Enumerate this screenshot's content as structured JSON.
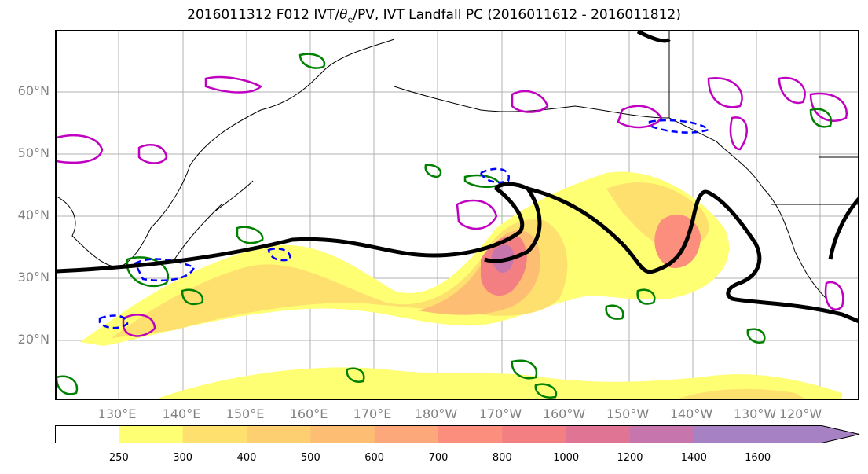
{
  "title": {
    "prefix": "2016011312 F012 IVT/",
    "theta": "θ",
    "sub": "e",
    "suffix": "/PV, IVT Landfall PC (2016011612 - 2016011812)"
  },
  "lat_labels": [
    "60°N",
    "50°N",
    "40°N",
    "30°N",
    "20°N"
  ],
  "lon_labels": [
    "130°E",
    "140°E",
    "150°E",
    "160°E",
    "170°E",
    "180°W",
    "170°W",
    "160°W",
    "150°W",
    "140°W",
    "130°W",
    "120°W"
  ],
  "colorbar": {
    "ticks": [
      "250",
      "300",
      "400",
      "500",
      "600",
      "700",
      "800",
      "1000",
      "1200",
      "1400",
      "1600"
    ],
    "colors": [
      "#ffffff",
      "#ffff73",
      "#fee06f",
      "#fdcf70",
      "#fdbd73",
      "#fda87a",
      "#fb8e7c",
      "#f47f83",
      "#e07495",
      "#c776ad",
      "#a682c4"
    ]
  },
  "contours": {
    "ivt_fill_color": "#fdbd73",
    "theta_e_color": "#000000",
    "pv_positive_color": "#008000",
    "pv_magenta_color": "#c000c0",
    "pv_negative_color": "#0000ff"
  }
}
